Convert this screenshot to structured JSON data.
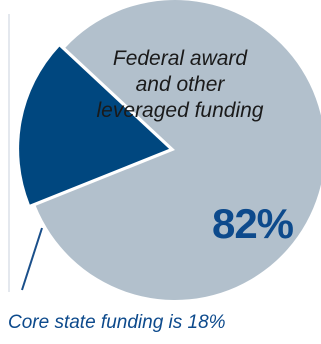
{
  "chart_data": {
    "type": "pie",
    "slices": [
      {
        "label": "Federal award and other leveraged funding",
        "value": 82,
        "display": "82%",
        "color": "#b2c0cc"
      },
      {
        "label": "Core state funding",
        "value": 18,
        "color": "#00477f"
      }
    ],
    "slice_text": {
      "large": "Federal award and other leveraged funding",
      "large_line1": "Federal award",
      "large_line2": "and other",
      "large_line3": "leveraged funding",
      "large_value": "82%"
    },
    "caption": "Core  state funding is 18%",
    "colors": {
      "large_slice": "#b2c0cc",
      "small_slice": "#00477f",
      "leader_line": "#1a4f8a",
      "value_text": "#0d4a8c"
    }
  }
}
